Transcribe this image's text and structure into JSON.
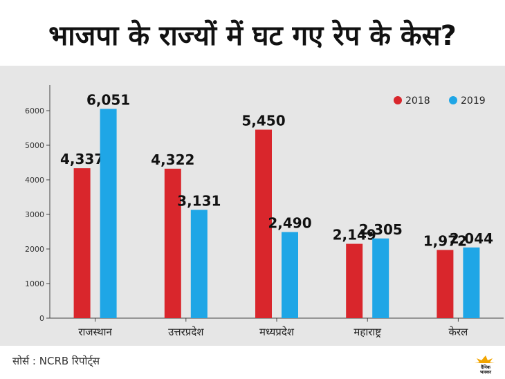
{
  "header": {
    "title": "भाजपा के राज्यों में घट गए रेप के केस?"
  },
  "footer": {
    "source": "सोर्स : NCRB रिपोर्ट्स",
    "logo_text": "दैनिक भास्कर"
  },
  "colors": {
    "2018": "#d9262c",
    "2019": "#1fa6e6",
    "panel_bg": "#e6e6e6"
  },
  "chart_data": {
    "type": "bar",
    "title": "भाजपा के राज्यों में घट गए रेप के केस?",
    "categories": [
      "राजस्थान",
      "उत्तरप्रदेश",
      "मध्यप्रदेश",
      "महाराष्ट्र",
      "केरल"
    ],
    "series": [
      {
        "name": "2018",
        "values": [
          4337,
          4322,
          5450,
          2149,
          1972
        ],
        "labels": [
          "4,337",
          "4,322",
          "5,450",
          "2,149",
          "1,972"
        ]
      },
      {
        "name": "2019",
        "values": [
          6051,
          3131,
          2490,
          2305,
          2044
        ],
        "labels": [
          "6,051",
          "3,131",
          "2,490",
          "2,305",
          "2,044"
        ]
      }
    ],
    "yticks": [
      "0",
      "1000",
      "2000",
      "3000",
      "4000",
      "5000",
      "6000"
    ],
    "ylim": [
      0,
      6700
    ],
    "legend": "top-right",
    "grid": false,
    "xlabel": "",
    "ylabel": ""
  }
}
